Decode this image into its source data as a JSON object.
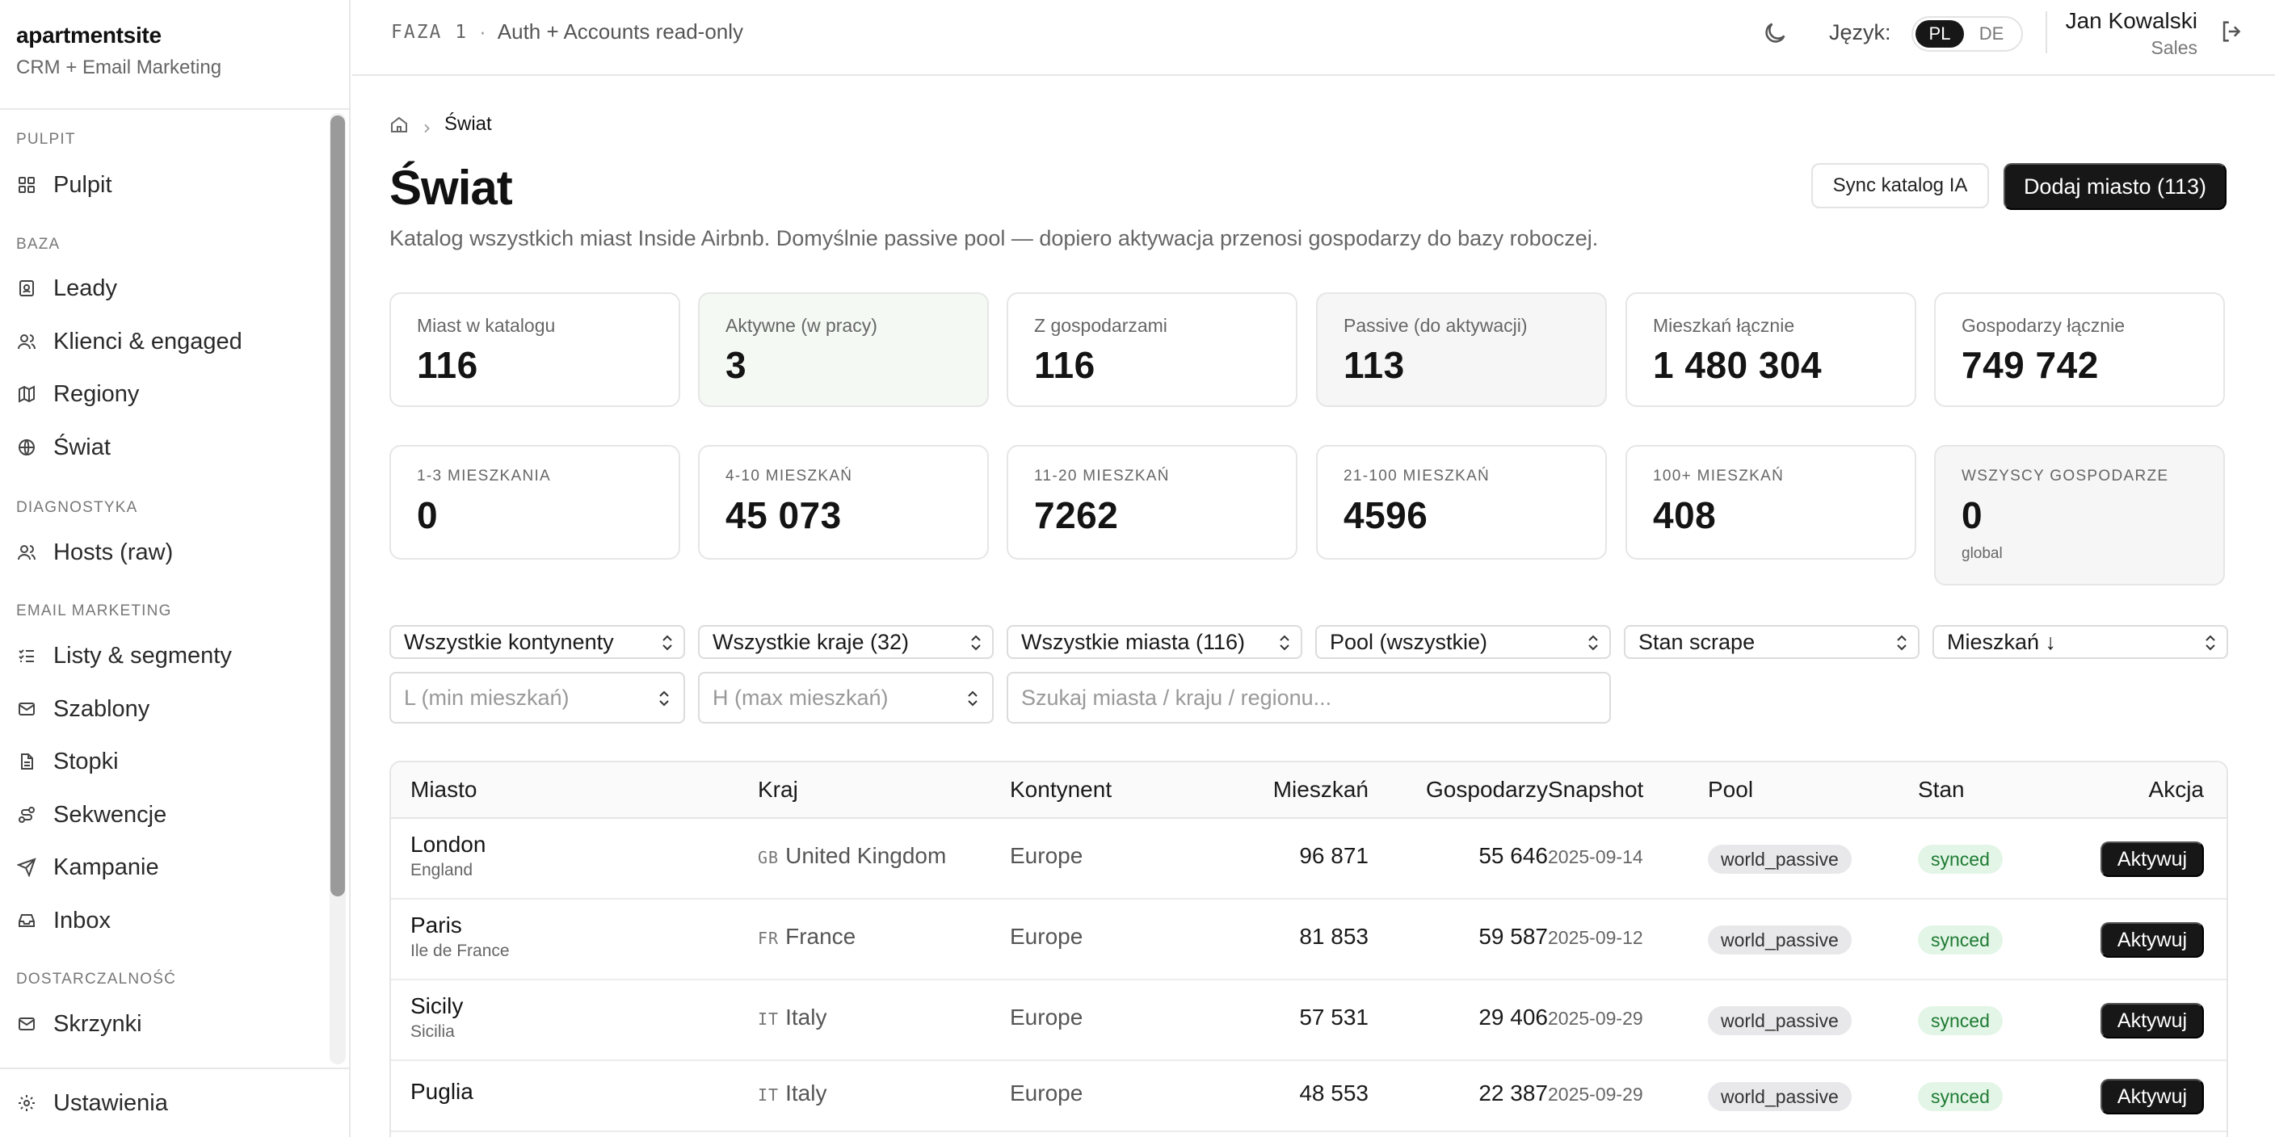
{
  "app": {
    "name": "apartmentsite",
    "subtitle": "CRM + Email Marketing"
  },
  "sidebar": {
    "sections": [
      {
        "label": "PULPIT"
      },
      {
        "label": "BAZA"
      },
      {
        "label": "DIAGNOSTYKA"
      },
      {
        "label": "EMAIL MARKETING"
      },
      {
        "label": "DOSTARCZALNOŚĆ"
      }
    ],
    "items": [
      {
        "label": "Pulpit",
        "icon": "grid-icon"
      },
      {
        "label": "Leady",
        "icon": "contact-card-icon"
      },
      {
        "label": "Klienci & engaged",
        "icon": "users-icon"
      },
      {
        "label": "Regiony",
        "icon": "map-icon"
      },
      {
        "label": "Świat",
        "icon": "globe-icon"
      },
      {
        "label": "Hosts (raw)",
        "icon": "users-icon"
      },
      {
        "label": "Listy & segmenty",
        "icon": "list-check-icon"
      },
      {
        "label": "Szablony",
        "icon": "mail-icon"
      },
      {
        "label": "Stopki",
        "icon": "file-text-icon"
      },
      {
        "label": "Sekwencje",
        "icon": "route-icon"
      },
      {
        "label": "Kampanie",
        "icon": "send-icon"
      },
      {
        "label": "Inbox",
        "icon": "inbox-icon"
      },
      {
        "label": "Skrzynki",
        "icon": "mail-icon"
      }
    ],
    "settings": {
      "label": "Ustawienia",
      "icon": "gear-icon"
    }
  },
  "topbar": {
    "phase_code": "FAZA 1",
    "phase_dot": "·",
    "phase_text": "Auth + Accounts read-only",
    "lang_label": "Język:",
    "langs": [
      "PL",
      "DE"
    ],
    "active_lang": "PL",
    "user_name": "Jan Kowalski",
    "user_role": "Sales"
  },
  "breadcrumb": {
    "current": "Świat"
  },
  "page": {
    "title": "Świat",
    "description": "Katalog wszystkich miast Inside Airbnb. Domyślnie passive pool — dopiero aktywacja przenosi gospodarzy do bazy roboczej.",
    "sync_button": "Sync katalog IA",
    "add_button": "Dodaj miasto (113)"
  },
  "stats": [
    {
      "label": "Miast w katalogu",
      "value": "116"
    },
    {
      "label": "Aktywne (w pracy)",
      "value": "3"
    },
    {
      "label": "Z gospodarzami",
      "value": "116"
    },
    {
      "label": "Passive (do aktywacji)",
      "value": "113"
    },
    {
      "label": "Mieszkań łącznie",
      "value": "1 480 304"
    },
    {
      "label": "Gospodarzy łącznie",
      "value": "749 742"
    }
  ],
  "bands": [
    {
      "label": "1-3 MIESZKANIA",
      "value": "0"
    },
    {
      "label": "4-10 MIESZKAŃ",
      "value": "45 073"
    },
    {
      "label": "11-20 MIESZKAŃ",
      "value": "7262"
    },
    {
      "label": "21-100 MIESZKAŃ",
      "value": "4596"
    },
    {
      "label": "100+ MIESZKAŃ",
      "value": "408"
    },
    {
      "label": "WSZYSCY GOSPODARZE",
      "value": "0",
      "note": "global"
    }
  ],
  "filters": {
    "continent": "Wszystkie kontynenty",
    "country": "Wszystkie kraje (32)",
    "city": "Wszystkie miasta (116)",
    "pool": "Pool (wszystkie)",
    "scrape": "Stan scrape",
    "sort": "Mieszkań ↓",
    "min_placeholder": "L (min mieszkań)",
    "max_placeholder": "H (max mieszkań)",
    "search_placeholder": "Szukaj miasta / kraju / regionu..."
  },
  "table": {
    "columns": [
      "Miasto",
      "Kraj",
      "Kontynent",
      "Mieszkań",
      "Gospodarzy",
      "Snapshot",
      "Pool",
      "Stan",
      "Akcja"
    ],
    "rows": [
      {
        "city": "London",
        "region": "England",
        "cc": "GB",
        "country": "United Kingdom",
        "continent": "Europe",
        "apartments": "96 871",
        "hosts": "55 646",
        "snapshot": "2025-09-14",
        "pool": "world_passive",
        "state": "synced",
        "action": "Aktywuj"
      },
      {
        "city": "Paris",
        "region": "Ile de France",
        "cc": "FR",
        "country": "France",
        "continent": "Europe",
        "apartments": "81 853",
        "hosts": "59 587",
        "snapshot": "2025-09-12",
        "pool": "world_passive",
        "state": "synced",
        "action": "Aktywuj"
      },
      {
        "city": "Sicily",
        "region": "Sicilia",
        "cc": "IT",
        "country": "Italy",
        "continent": "Europe",
        "apartments": "57 531",
        "hosts": "29 406",
        "snapshot": "2025-09-29",
        "pool": "world_passive",
        "state": "synced",
        "action": "Aktywuj"
      },
      {
        "city": "Puglia",
        "region": "",
        "cc": "IT",
        "country": "Italy",
        "continent": "Europe",
        "apartments": "48 553",
        "hosts": "22 387",
        "snapshot": "2025-09-29",
        "pool": "world_passive",
        "state": "synced",
        "action": "Aktywuj"
      }
    ]
  }
}
